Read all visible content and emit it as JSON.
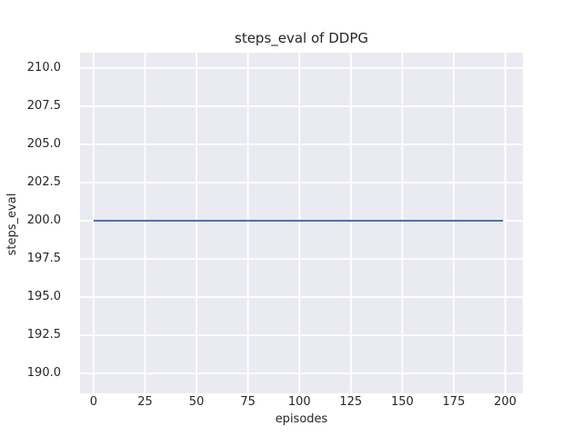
{
  "chart_data": {
    "type": "line",
    "title": "steps_eval of DDPG",
    "xlabel": "episodes",
    "ylabel": "steps_eval",
    "x_ticks": [
      0,
      25,
      50,
      75,
      100,
      125,
      150,
      175,
      200
    ],
    "x_tick_labels": [
      "0",
      "25",
      "50",
      "75",
      "100",
      "125",
      "150",
      "175",
      "200"
    ],
    "y_ticks": [
      210.0,
      207.5,
      205.0,
      202.5,
      200.0,
      197.5,
      195.0,
      192.5,
      190.0
    ],
    "y_tick_labels": [
      "210.0",
      "207.5",
      "205.0",
      "202.5",
      "200.0",
      "197.5",
      "195.0",
      "192.5",
      "190.0"
    ],
    "xlim": [
      -6.6,
      208.6
    ],
    "ylim": [
      188.7,
      211.0
    ],
    "grid": true,
    "legend": false,
    "series": [
      {
        "name": "steps_eval",
        "x": [
          0,
          199
        ],
        "y": [
          200,
          200
        ],
        "color": "#4c72b0"
      }
    ],
    "style": {
      "plot_background": "#eaeaf2",
      "grid_color": "#ffffff",
      "text_color": "#262626",
      "figure_background": "#ffffff"
    }
  }
}
